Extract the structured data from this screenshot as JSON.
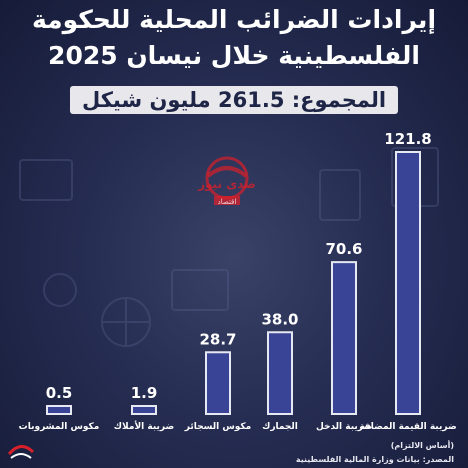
{
  "title_line1": "إيرادات الضرائب المحلية للحكومة",
  "title_line2": "الفلسطينية  خلال  نيسان 2025",
  "total_label": "المجموع: 261.5 مليون شيكل",
  "footer": {
    "basis": "(أساس الالتزام)",
    "source": "المصدر: بيانات وزارة المالية الفلسطينية"
  },
  "logo": {
    "brand": "صدى نيوز",
    "sub": "اقتصاد"
  },
  "colors": {
    "bar": "#3a4497",
    "bar_edge": "#e6e8f2",
    "accent": "#d8202a",
    "text": "#ffffff"
  },
  "chart_data": {
    "type": "bar",
    "title": "إيرادات الضرائب المحلية للحكومة الفلسطينية خلال نيسان 2025",
    "subtitle": "المجموع: 261.5 مليون شيكل",
    "categories": [
      "ضريبة القيمة المضافة",
      "ضريبة الدخل",
      "الجمارك",
      "مكوس السجائر",
      "ضريبة الأملاك",
      "مكوس المشروبات"
    ],
    "values": [
      121.8,
      70.6,
      38.0,
      28.7,
      1.9,
      0.5
    ],
    "value_labels": [
      "121.8",
      "70.6",
      "38.0",
      "28.7",
      "1.9",
      "0.5"
    ],
    "xlabel": "",
    "ylabel": "",
    "ylim": [
      0,
      121.8
    ],
    "grid": false,
    "legend": "none"
  }
}
